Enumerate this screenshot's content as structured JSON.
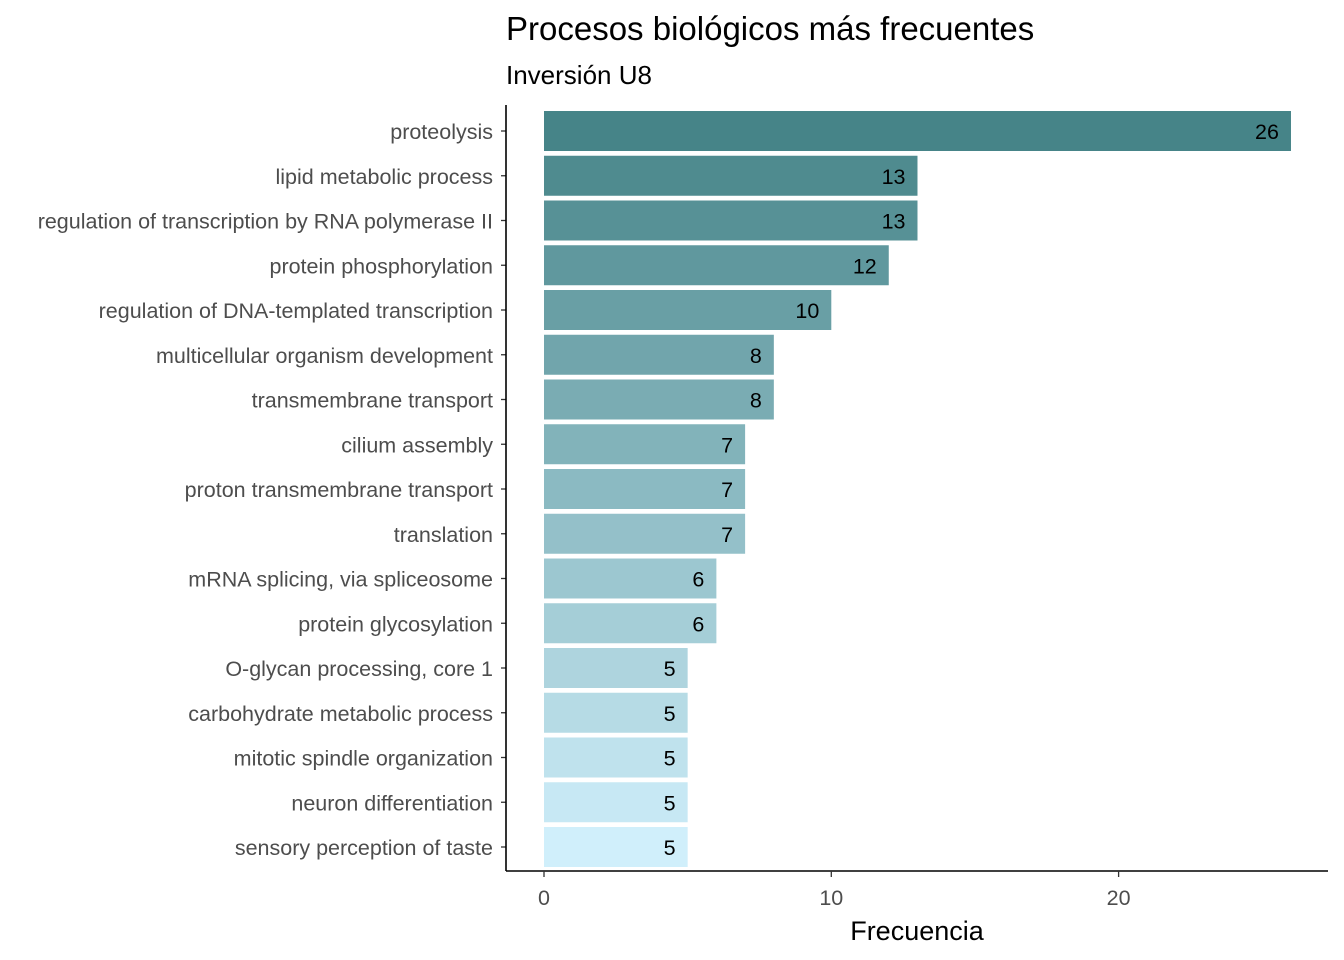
{
  "chart_data": {
    "type": "bar",
    "orientation": "horizontal",
    "title": "Procesos biológicos más frecuentes",
    "subtitle": "Inversión U8",
    "xlabel": "Frecuencia",
    "ylabel": "",
    "xlim": [
      0,
      26
    ],
    "x_ticks": [
      0,
      10,
      20
    ],
    "grid": false,
    "legend": "none",
    "color_gradient": [
      "#468488",
      "#d0effb"
    ],
    "categories": [
      "proteolysis",
      "lipid metabolic process",
      "regulation of transcription by RNA polymerase II",
      "protein phosphorylation",
      "regulation of DNA-templated transcription",
      "multicellular organism development",
      "transmembrane transport",
      "cilium assembly",
      "proton transmembrane transport",
      "translation",
      "mRNA splicing, via spliceosome",
      "protein glycosylation",
      "O-glycan processing, core 1",
      "carbohydrate metabolic process",
      "mitotic spindle organization",
      "neuron differentiation",
      "sensory perception of taste"
    ],
    "values": [
      26,
      13,
      13,
      12,
      10,
      8,
      8,
      7,
      7,
      7,
      6,
      6,
      5,
      5,
      5,
      5,
      5
    ]
  }
}
